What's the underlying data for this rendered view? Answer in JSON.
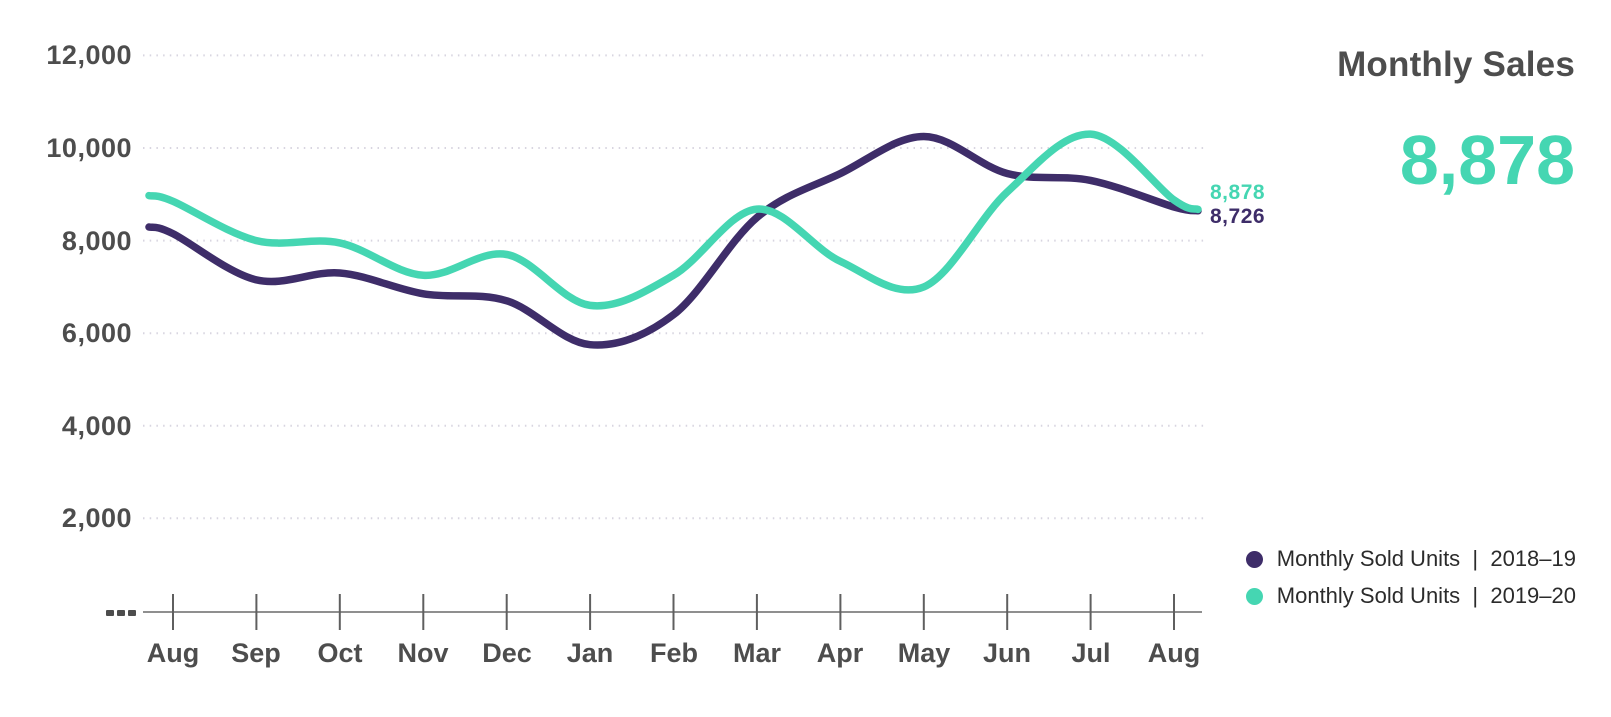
{
  "header": {
    "title": "Monthly Sales",
    "headline_value": "8,878"
  },
  "end_labels": [
    {
      "text": "8,878",
      "series": "2019–20"
    },
    {
      "text": "8,726",
      "series": "2018–19"
    }
  ],
  "legend": {
    "items": [
      {
        "label": "Monthly Sold Units  |  2018–19",
        "series_key": "series_2018_19"
      },
      {
        "label": "Monthly Sold Units  |  2019–20",
        "series_key": "series_2019_20"
      }
    ]
  },
  "y_axis": {
    "labels": [
      "12,000",
      "10,000",
      "8,000",
      "6,000",
      "4,000",
      "2,000"
    ],
    "values": [
      12000,
      10000,
      8000,
      6000,
      4000,
      2000
    ],
    "zero_label": "---"
  },
  "x_axis": {
    "labels": [
      "Aug",
      "Sep",
      "Oct",
      "Nov",
      "Dec",
      "Jan",
      "Feb",
      "Mar",
      "Apr",
      "May",
      "Jun",
      "Jul",
      "Aug"
    ]
  },
  "chart_data": {
    "type": "line",
    "title": "Monthly Sales",
    "categories": [
      "Aug",
      "Sep",
      "Oct",
      "Nov",
      "Dec",
      "Jan",
      "Feb",
      "Mar",
      "Apr",
      "May",
      "Jun",
      "Jul",
      "Aug"
    ],
    "series": [
      {
        "name": "Monthly Sold Units | 2018–19",
        "color": "#3e2d69",
        "values": [
          8150,
          7150,
          7300,
          6850,
          6700,
          5750,
          6400,
          8500,
          9450,
          10250,
          9450,
          9300,
          8726
        ],
        "end_label": "8,726"
      },
      {
        "name": "Monthly Sold Units | 2019–20",
        "color": "#45d6b2",
        "values": [
          8850,
          8000,
          7950,
          7250,
          7700,
          6600,
          7250,
          8680,
          7550,
          7000,
          9050,
          10300,
          8878
        ],
        "end_label": "8,878"
      }
    ],
    "ylim": [
      0,
      12000
    ],
    "y_step": 2000,
    "grid": "dotted-horizontal",
    "legend_position": "bottom-right",
    "line_smoothing": "spline"
  },
  "colors": {
    "series_2018_19": "#3e2d69",
    "series_2019_20": "#45d6b2",
    "title_text": "#4d4d4d",
    "axis_text": "#4d4d4d",
    "legend_text": "#2b2b2b",
    "gridline": "#d8d5e0",
    "axis_line": "#8f8f8f",
    "tick": "#5f5f5f",
    "background": "#ffffff"
  }
}
